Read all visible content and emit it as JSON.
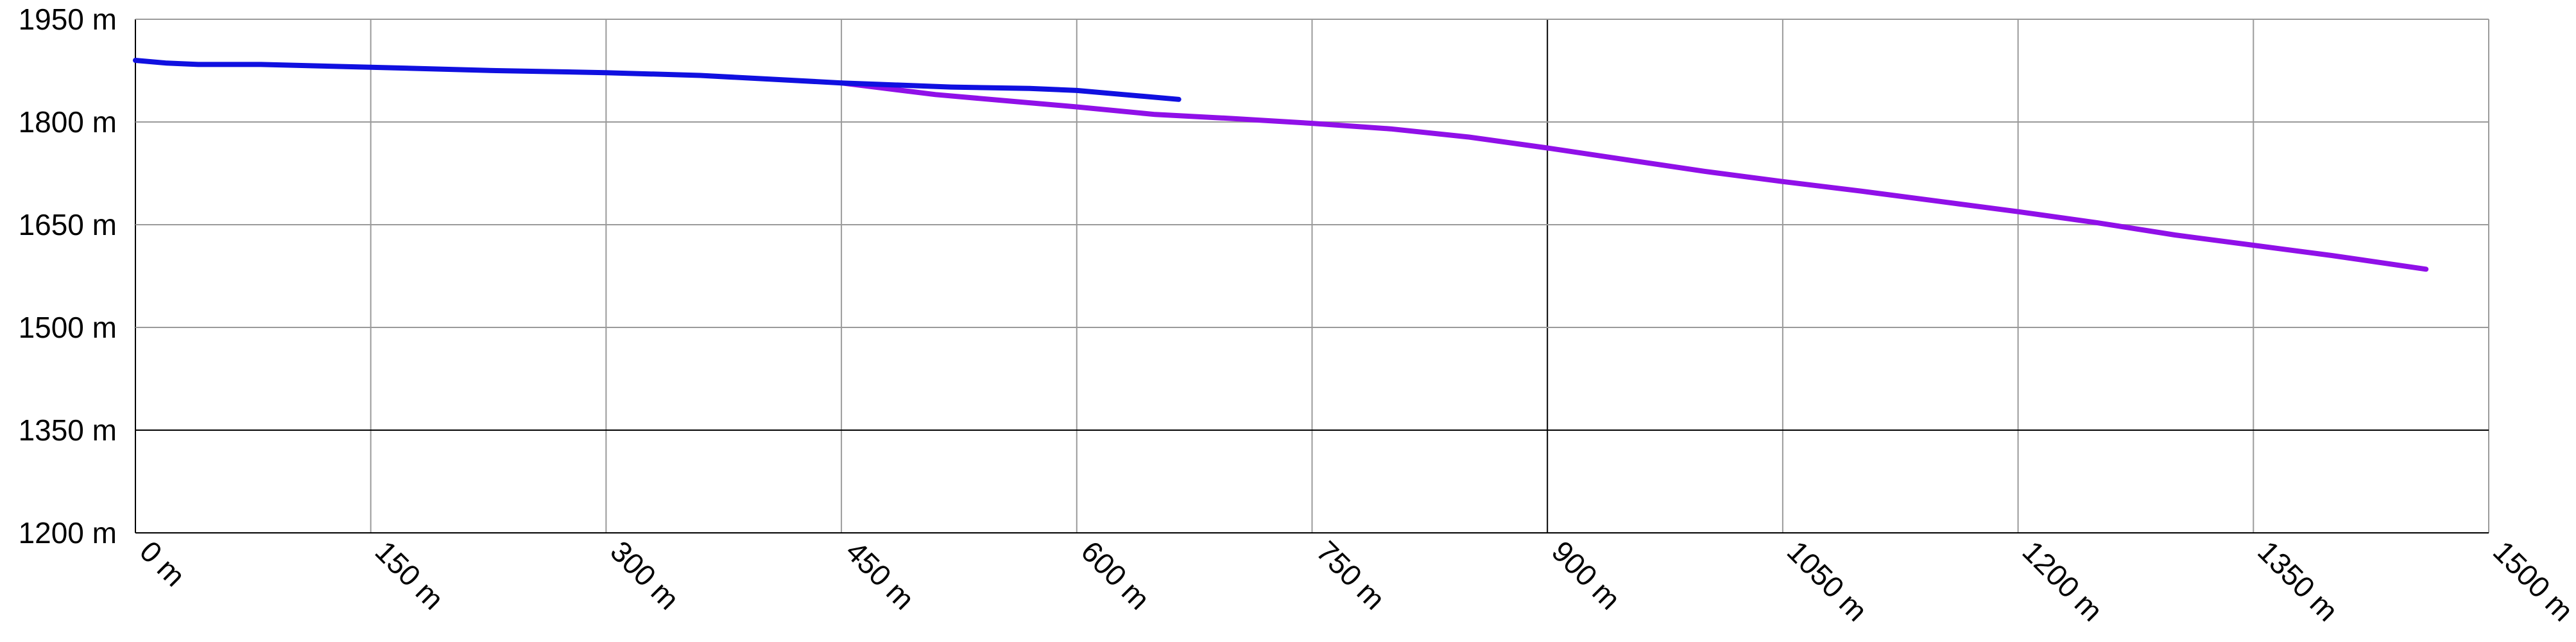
{
  "chart_data": {
    "type": "line",
    "title": "",
    "xlabel": "",
    "ylabel": "",
    "xlim": [
      0,
      1500
    ],
    "ylim": [
      1200,
      1950
    ],
    "grid": true,
    "x_ticks": [
      {
        "value": 0,
        "label": "0 m"
      },
      {
        "value": 150,
        "label": "150 m"
      },
      {
        "value": 300,
        "label": "300 m"
      },
      {
        "value": 450,
        "label": "450 m"
      },
      {
        "value": 600,
        "label": "600 m"
      },
      {
        "value": 750,
        "label": "750 m"
      },
      {
        "value": 900,
        "label": "900 m"
      },
      {
        "value": 1050,
        "label": "1050 m"
      },
      {
        "value": 1200,
        "label": "1200 m"
      },
      {
        "value": 1350,
        "label": "1350 m"
      },
      {
        "value": 1500,
        "label": "1500 m"
      }
    ],
    "y_ticks": [
      {
        "value": 1200,
        "label": "1200 m"
      },
      {
        "value": 1350,
        "label": "1350 m"
      },
      {
        "value": 1500,
        "label": "1500 m"
      },
      {
        "value": 1650,
        "label": "1650 m"
      },
      {
        "value": 1800,
        "label": "1800 m"
      },
      {
        "value": 1950,
        "label": "1950 m"
      }
    ],
    "series": [
      {
        "color": "#1010e0",
        "points": [
          {
            "x": 0,
            "y": 1890
          },
          {
            "x": 20,
            "y": 1886
          },
          {
            "x": 40,
            "y": 1884
          },
          {
            "x": 80,
            "y": 1884
          },
          {
            "x": 150,
            "y": 1880
          },
          {
            "x": 230,
            "y": 1875
          },
          {
            "x": 300,
            "y": 1872
          },
          {
            "x": 360,
            "y": 1868
          },
          {
            "x": 450,
            "y": 1857
          },
          {
            "x": 520,
            "y": 1851
          },
          {
            "x": 570,
            "y": 1849
          },
          {
            "x": 600,
            "y": 1846
          },
          {
            "x": 630,
            "y": 1840
          },
          {
            "x": 665,
            "y": 1833
          }
        ]
      },
      {
        "color": "#9010e8",
        "points": [
          {
            "x": 450,
            "y": 1857
          },
          {
            "x": 510,
            "y": 1840
          },
          {
            "x": 560,
            "y": 1830
          },
          {
            "x": 600,
            "y": 1822
          },
          {
            "x": 650,
            "y": 1811
          },
          {
            "x": 700,
            "y": 1805
          },
          {
            "x": 750,
            "y": 1798
          },
          {
            "x": 800,
            "y": 1790
          },
          {
            "x": 850,
            "y": 1778
          },
          {
            "x": 900,
            "y": 1762
          },
          {
            "x": 950,
            "y": 1745
          },
          {
            "x": 1000,
            "y": 1728
          },
          {
            "x": 1050,
            "y": 1713
          },
          {
            "x": 1100,
            "y": 1699
          },
          {
            "x": 1150,
            "y": 1684
          },
          {
            "x": 1200,
            "y": 1669
          },
          {
            "x": 1250,
            "y": 1653
          },
          {
            "x": 1300,
            "y": 1635
          },
          {
            "x": 1350,
            "y": 1620
          },
          {
            "x": 1400,
            "y": 1605
          },
          {
            "x": 1460,
            "y": 1585
          }
        ]
      }
    ]
  }
}
